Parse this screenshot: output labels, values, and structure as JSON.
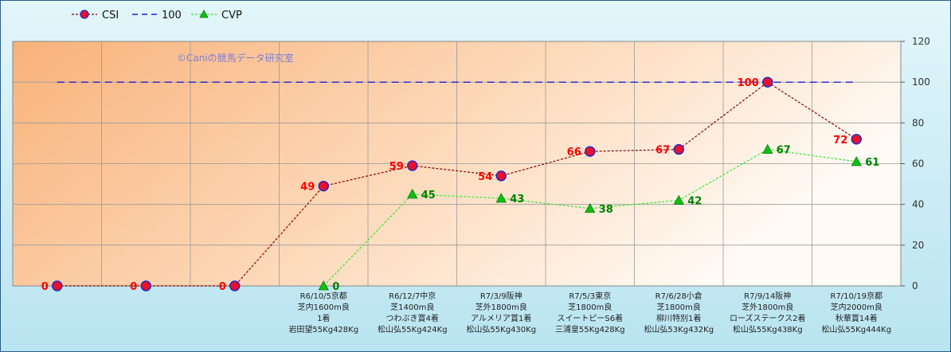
{
  "chart_data": {
    "type": "line",
    "watermark": "©Caniの競馬データ研究室",
    "ylim": [
      0,
      120
    ],
    "yticks": [
      0,
      20,
      40,
      60,
      80,
      100,
      120
    ],
    "categories": [
      [
        "",
        "",
        "",
        ""
      ],
      [
        "",
        "",
        "",
        ""
      ],
      [
        "",
        "",
        "",
        ""
      ],
      [
        "R6/10/5京都",
        "芝内1600m良",
        "1着",
        "岩田望55Kg428Kg"
      ],
      [
        "R6/12/7中京",
        "芝1400m良",
        "つわぶき賞4着",
        "松山弘55Kg424Kg"
      ],
      [
        "R7/3/9阪神",
        "芝外1800m良",
        "アルメリア賞1着",
        "松山弘55Kg430Kg"
      ],
      [
        "R7/5/3東京",
        "芝1800m良",
        "スイートピーS6着",
        "三浦皇55Kg428Kg"
      ],
      [
        "R7/6/28小倉",
        "芝1800m良",
        "柳川特別1着",
        "松山弘53Kg432Kg"
      ],
      [
        "R7/9/14阪神",
        "芝外1800m良",
        "ローズステークス2着",
        "松山弘55Kg438Kg"
      ],
      [
        "R7/10/19京都",
        "芝内2000m良",
        "秋華賞14着",
        "松山弘55Kg444Kg"
      ]
    ],
    "series": [
      {
        "name": "CSI",
        "color": "#8b0000",
        "marker_color": "#e8102a",
        "marker_edge": "#1a2ad0",
        "label_color": "#ff0000",
        "values": [
          0,
          0,
          0,
          49,
          59,
          54,
          66,
          67,
          100,
          72
        ]
      },
      {
        "name": "100",
        "color": "#1f1fd8",
        "values": [
          100,
          100,
          100,
          100,
          100,
          100,
          100,
          100,
          100,
          100
        ]
      },
      {
        "name": "CVP",
        "color": "#36e836",
        "marker_color": "#10c010",
        "label_color": "#008000",
        "values": [
          null,
          null,
          null,
          0,
          45,
          43,
          38,
          42,
          67,
          61
        ]
      }
    ]
  }
}
